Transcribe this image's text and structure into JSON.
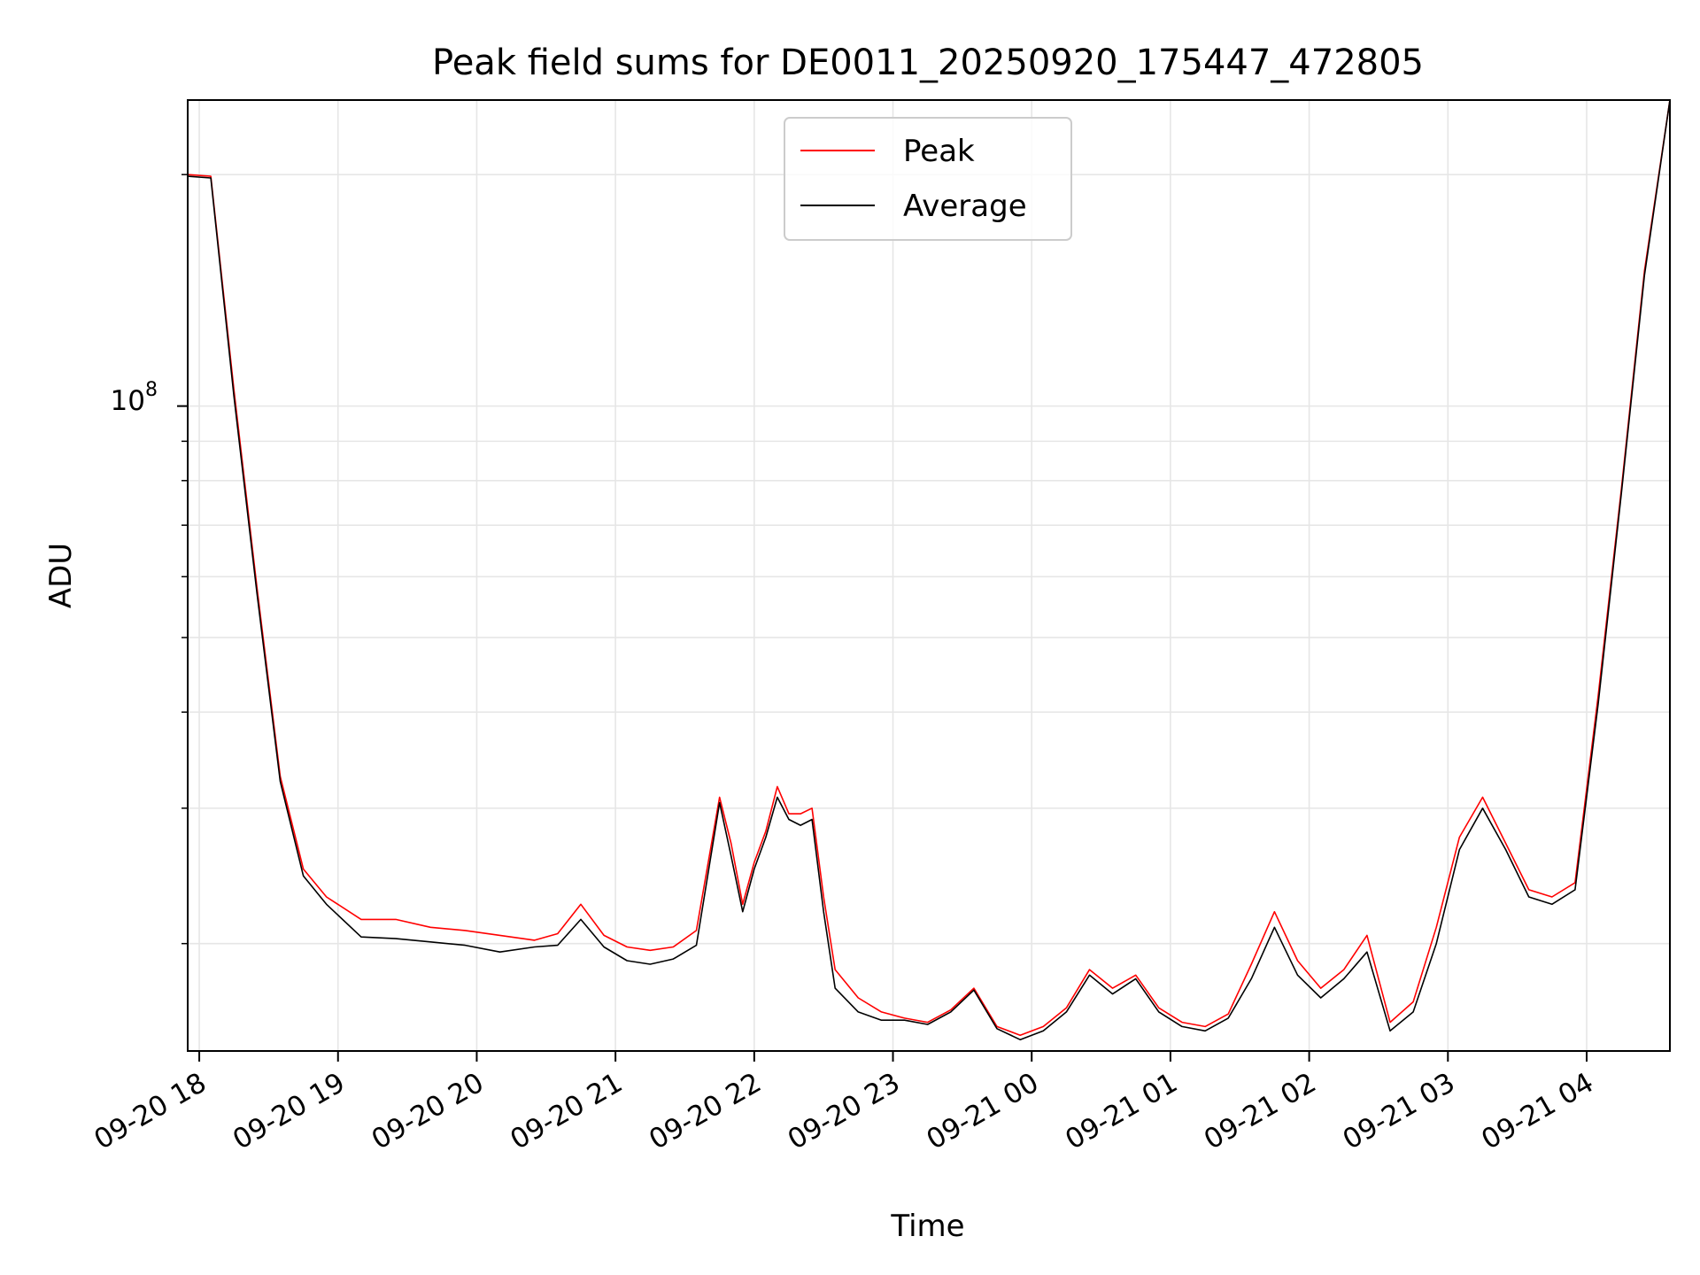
{
  "chart_data": {
    "type": "line",
    "title": "Peak field sums for DE0011_20250920_175447_472805",
    "xlabel": "Time",
    "ylabel": "ADU",
    "y_scale": "log",
    "y_tick_label": {
      "base": "10",
      "exponent": "8",
      "value": 100000000
    },
    "ylim": [
      14500000,
      250000000
    ],
    "xlim": [
      "2025-09-20 17:55",
      "2025-09-21 04:36"
    ],
    "x_ticks": [
      "09-20 18",
      "09-20 19",
      "09-20 20",
      "09-20 21",
      "09-20 22",
      "09-20 23",
      "09-21 00",
      "09-21 01",
      "09-21 02",
      "09-21 03",
      "09-21 04"
    ],
    "grid": true,
    "legend_position": "upper center",
    "colors": {
      "Peak": "#ff0000",
      "Average": "#000000"
    },
    "series": [
      {
        "name": "Peak",
        "x": [
          "2025-09-20 17:55",
          "2025-09-20 18:05",
          "2025-09-20 18:15",
          "2025-09-20 18:25",
          "2025-09-20 18:35",
          "2025-09-20 18:45",
          "2025-09-20 18:55",
          "2025-09-20 19:10",
          "2025-09-20 19:25",
          "2025-09-20 19:40",
          "2025-09-20 19:55",
          "2025-09-20 20:10",
          "2025-09-20 20:25",
          "2025-09-20 20:35",
          "2025-09-20 20:45",
          "2025-09-20 20:55",
          "2025-09-20 21:05",
          "2025-09-20 21:15",
          "2025-09-20 21:25",
          "2025-09-20 21:35",
          "2025-09-20 21:45",
          "2025-09-20 21:50",
          "2025-09-20 21:55",
          "2025-09-20 22:00",
          "2025-09-20 22:05",
          "2025-09-20 22:10",
          "2025-09-20 22:15",
          "2025-09-20 22:20",
          "2025-09-20 22:25",
          "2025-09-20 22:30",
          "2025-09-20 22:35",
          "2025-09-20 22:45",
          "2025-09-20 22:55",
          "2025-09-20 23:05",
          "2025-09-20 23:15",
          "2025-09-20 23:25",
          "2025-09-20 23:35",
          "2025-09-20 23:45",
          "2025-09-20 23:55",
          "2025-09-21 00:05",
          "2025-09-21 00:15",
          "2025-09-21 00:25",
          "2025-09-21 00:35",
          "2025-09-21 00:45",
          "2025-09-21 00:55",
          "2025-09-21 01:05",
          "2025-09-21 01:15",
          "2025-09-21 01:25",
          "2025-09-21 01:35",
          "2025-09-21 01:45",
          "2025-09-21 01:55",
          "2025-09-21 02:05",
          "2025-09-21 02:15",
          "2025-09-21 02:25",
          "2025-09-21 02:35",
          "2025-09-21 02:45",
          "2025-09-21 02:55",
          "2025-09-21 03:05",
          "2025-09-21 03:15",
          "2025-09-21 03:25",
          "2025-09-21 03:35",
          "2025-09-21 03:45",
          "2025-09-21 03:55",
          "2025-09-21 04:05",
          "2025-09-21 04:15",
          "2025-09-21 04:25",
          "2025-09-21 04:36"
        ],
        "values": [
          200000000,
          199000000,
          105000000,
          58000000,
          33000000,
          25000000,
          23000000,
          21500000,
          21500000,
          21000000,
          20800000,
          20500000,
          20200000,
          20600000,
          22500000,
          20500000,
          19800000,
          19600000,
          19800000,
          20800000,
          31000000,
          27000000,
          22500000,
          25500000,
          28000000,
          32000000,
          29500000,
          29500000,
          30000000,
          23000000,
          18500000,
          17000000,
          16300000,
          16000000,
          15800000,
          16400000,
          17500000,
          15600000,
          15200000,
          15600000,
          16500000,
          18500000,
          17500000,
          18200000,
          16500000,
          15800000,
          15600000,
          16200000,
          18800000,
          22000000,
          19000000,
          17500000,
          18500000,
          20500000,
          15800000,
          16800000,
          21000000,
          27500000,
          31000000,
          27000000,
          23500000,
          23000000,
          24000000,
          42000000,
          78000000,
          150000000,
          250000000
        ]
      },
      {
        "name": "Average",
        "x": [
          "2025-09-20 17:55",
          "2025-09-20 18:05",
          "2025-09-20 18:15",
          "2025-09-20 18:25",
          "2025-09-20 18:35",
          "2025-09-20 18:45",
          "2025-09-20 18:55",
          "2025-09-20 19:10",
          "2025-09-20 19:25",
          "2025-09-20 19:40",
          "2025-09-20 19:55",
          "2025-09-20 20:10",
          "2025-09-20 20:25",
          "2025-09-20 20:35",
          "2025-09-20 20:45",
          "2025-09-20 20:55",
          "2025-09-20 21:05",
          "2025-09-20 21:15",
          "2025-09-20 21:25",
          "2025-09-20 21:35",
          "2025-09-20 21:45",
          "2025-09-20 21:50",
          "2025-09-20 21:55",
          "2025-09-20 22:00",
          "2025-09-20 22:05",
          "2025-09-20 22:10",
          "2025-09-20 22:15",
          "2025-09-20 22:20",
          "2025-09-20 22:25",
          "2025-09-20 22:30",
          "2025-09-20 22:35",
          "2025-09-20 22:45",
          "2025-09-20 22:55",
          "2025-09-20 23:05",
          "2025-09-20 23:15",
          "2025-09-20 23:25",
          "2025-09-20 23:35",
          "2025-09-20 23:45",
          "2025-09-20 23:55",
          "2025-09-21 00:05",
          "2025-09-21 00:15",
          "2025-09-21 00:25",
          "2025-09-21 00:35",
          "2025-09-21 00:45",
          "2025-09-21 00:55",
          "2025-09-21 01:05",
          "2025-09-21 01:15",
          "2025-09-21 01:25",
          "2025-09-21 01:35",
          "2025-09-21 01:45",
          "2025-09-21 01:55",
          "2025-09-21 02:05",
          "2025-09-21 02:15",
          "2025-09-21 02:25",
          "2025-09-21 02:35",
          "2025-09-21 02:45",
          "2025-09-21 02:55",
          "2025-09-21 03:05",
          "2025-09-21 03:15",
          "2025-09-21 03:25",
          "2025-09-21 03:35",
          "2025-09-21 03:45",
          "2025-09-21 03:55",
          "2025-09-21 04:05",
          "2025-09-21 04:15",
          "2025-09-21 04:25",
          "2025-09-21 04:36"
        ],
        "values": [
          199000000,
          198000000,
          103000000,
          57000000,
          32500000,
          24500000,
          22500000,
          20400000,
          20300000,
          20100000,
          19900000,
          19500000,
          19800000,
          19900000,
          21500000,
          19800000,
          19000000,
          18800000,
          19100000,
          19900000,
          30500000,
          26000000,
          22000000,
          25000000,
          27500000,
          31000000,
          29000000,
          28500000,
          29000000,
          22000000,
          17500000,
          16300000,
          15900000,
          15900000,
          15700000,
          16300000,
          17400000,
          15500000,
          15000000,
          15400000,
          16300000,
          18200000,
          17200000,
          18000000,
          16300000,
          15600000,
          15400000,
          16000000,
          18000000,
          21000000,
          18200000,
          17000000,
          18000000,
          19500000,
          15400000,
          16300000,
          20000000,
          26500000,
          30000000,
          26500000,
          23000000,
          22500000,
          23500000,
          41000000,
          77000000,
          148000000,
          250000000
        ]
      }
    ]
  }
}
